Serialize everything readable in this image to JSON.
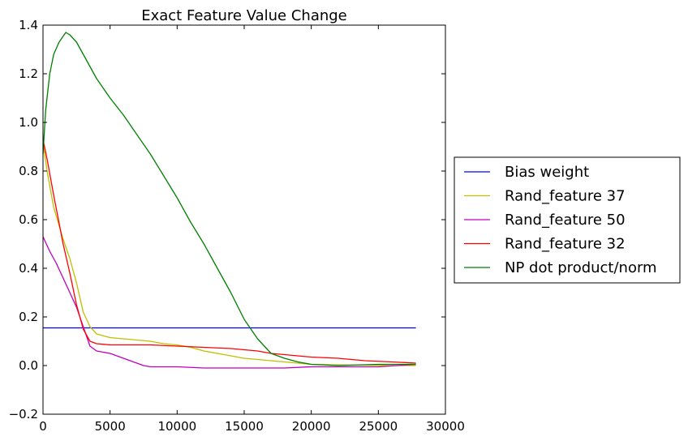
{
  "chart_data": {
    "type": "line",
    "title": "Exact Feature Value Change",
    "xlabel": "",
    "ylabel": "",
    "xlim": [
      0,
      30000
    ],
    "ylim": [
      -0.2,
      1.4
    ],
    "x_ticks": [
      "0",
      "5000",
      "10000",
      "15000",
      "20000",
      "25000",
      "30000"
    ],
    "y_ticks": [
      "−0.2",
      "0.0",
      "0.2",
      "0.4",
      "0.6",
      "0.8",
      "1.0",
      "1.2",
      "1.4"
    ],
    "grid": false,
    "legend_position": "center-left outside right",
    "series": [
      {
        "name": "Bias weight",
        "color": "#0000ff",
        "points": [
          [
            0,
            0.155
          ],
          [
            27800,
            0.155
          ]
        ]
      },
      {
        "name": "Rand_feature 37",
        "color": "#bfbf00",
        "points": [
          [
            0,
            0.92
          ],
          [
            300,
            0.8
          ],
          [
            800,
            0.65
          ],
          [
            1500,
            0.52
          ],
          [
            2000,
            0.44
          ],
          [
            2500,
            0.34
          ],
          [
            3000,
            0.22
          ],
          [
            3500,
            0.16
          ],
          [
            4000,
            0.13
          ],
          [
            5000,
            0.115
          ],
          [
            6000,
            0.11
          ],
          [
            7000,
            0.105
          ],
          [
            8000,
            0.1
          ],
          [
            9000,
            0.09
          ],
          [
            10000,
            0.085
          ],
          [
            11000,
            0.075
          ],
          [
            12000,
            0.06
          ],
          [
            13000,
            0.05
          ],
          [
            14000,
            0.04
          ],
          [
            15000,
            0.03
          ],
          [
            16000,
            0.025
          ],
          [
            17000,
            0.02
          ],
          [
            18000,
            0.015
          ],
          [
            19000,
            0.01
          ],
          [
            20000,
            0.005
          ],
          [
            22000,
            0.003
          ],
          [
            24000,
            0.002
          ],
          [
            26000,
            0.0
          ],
          [
            27800,
            0.0
          ]
        ]
      },
      {
        "name": "Rand_feature 50",
        "color": "#bf00bf",
        "points": [
          [
            0,
            0.53
          ],
          [
            500,
            0.47
          ],
          [
            1000,
            0.42
          ],
          [
            1500,
            0.36
          ],
          [
            2000,
            0.3
          ],
          [
            2500,
            0.24
          ],
          [
            3000,
            0.16
          ],
          [
            3500,
            0.08
          ],
          [
            4000,
            0.06
          ],
          [
            5000,
            0.05
          ],
          [
            6000,
            0.03
          ],
          [
            7000,
            0.01
          ],
          [
            7500,
            0.0
          ],
          [
            8000,
            -0.005
          ],
          [
            10000,
            -0.005
          ],
          [
            12000,
            -0.01
          ],
          [
            15000,
            -0.01
          ],
          [
            18000,
            -0.01
          ],
          [
            20000,
            -0.005
          ],
          [
            22000,
            -0.005
          ],
          [
            25000,
            -0.005
          ],
          [
            27800,
            0.005
          ]
        ]
      },
      {
        "name": "Rand_feature 32",
        "color": "#ff0000",
        "points": [
          [
            0,
            0.93
          ],
          [
            300,
            0.85
          ],
          [
            800,
            0.7
          ],
          [
            1500,
            0.5
          ],
          [
            2000,
            0.38
          ],
          [
            2500,
            0.25
          ],
          [
            3000,
            0.15
          ],
          [
            3500,
            0.1
          ],
          [
            4000,
            0.09
          ],
          [
            5000,
            0.085
          ],
          [
            6000,
            0.085
          ],
          [
            7000,
            0.085
          ],
          [
            8000,
            0.085
          ],
          [
            10000,
            0.08
          ],
          [
            12000,
            0.075
          ],
          [
            14000,
            0.07
          ],
          [
            15000,
            0.065
          ],
          [
            16000,
            0.06
          ],
          [
            17000,
            0.05
          ],
          [
            18000,
            0.045
          ],
          [
            20000,
            0.035
          ],
          [
            22000,
            0.03
          ],
          [
            24000,
            0.02
          ],
          [
            26000,
            0.015
          ],
          [
            27800,
            0.01
          ]
        ]
      },
      {
        "name": "NP dot product/norm",
        "color": "#008000",
        "points": [
          [
            0,
            0.87
          ],
          [
            200,
            1.05
          ],
          [
            500,
            1.2
          ],
          [
            800,
            1.28
          ],
          [
            1200,
            1.33
          ],
          [
            1700,
            1.37
          ],
          [
            2000,
            1.36
          ],
          [
            2500,
            1.33
          ],
          [
            3000,
            1.28
          ],
          [
            4000,
            1.18
          ],
          [
            5000,
            1.1
          ],
          [
            6000,
            1.03
          ],
          [
            7000,
            0.95
          ],
          [
            8000,
            0.87
          ],
          [
            9000,
            0.78
          ],
          [
            10000,
            0.69
          ],
          [
            11000,
            0.59
          ],
          [
            12000,
            0.5
          ],
          [
            13000,
            0.4
          ],
          [
            14000,
            0.3
          ],
          [
            15000,
            0.19
          ],
          [
            16000,
            0.11
          ],
          [
            17000,
            0.05
          ],
          [
            18000,
            0.03
          ],
          [
            19000,
            0.015
          ],
          [
            20000,
            0.005
          ],
          [
            22000,
            0.0
          ],
          [
            25000,
            0.005
          ],
          [
            27800,
            0.005
          ]
        ]
      }
    ]
  }
}
